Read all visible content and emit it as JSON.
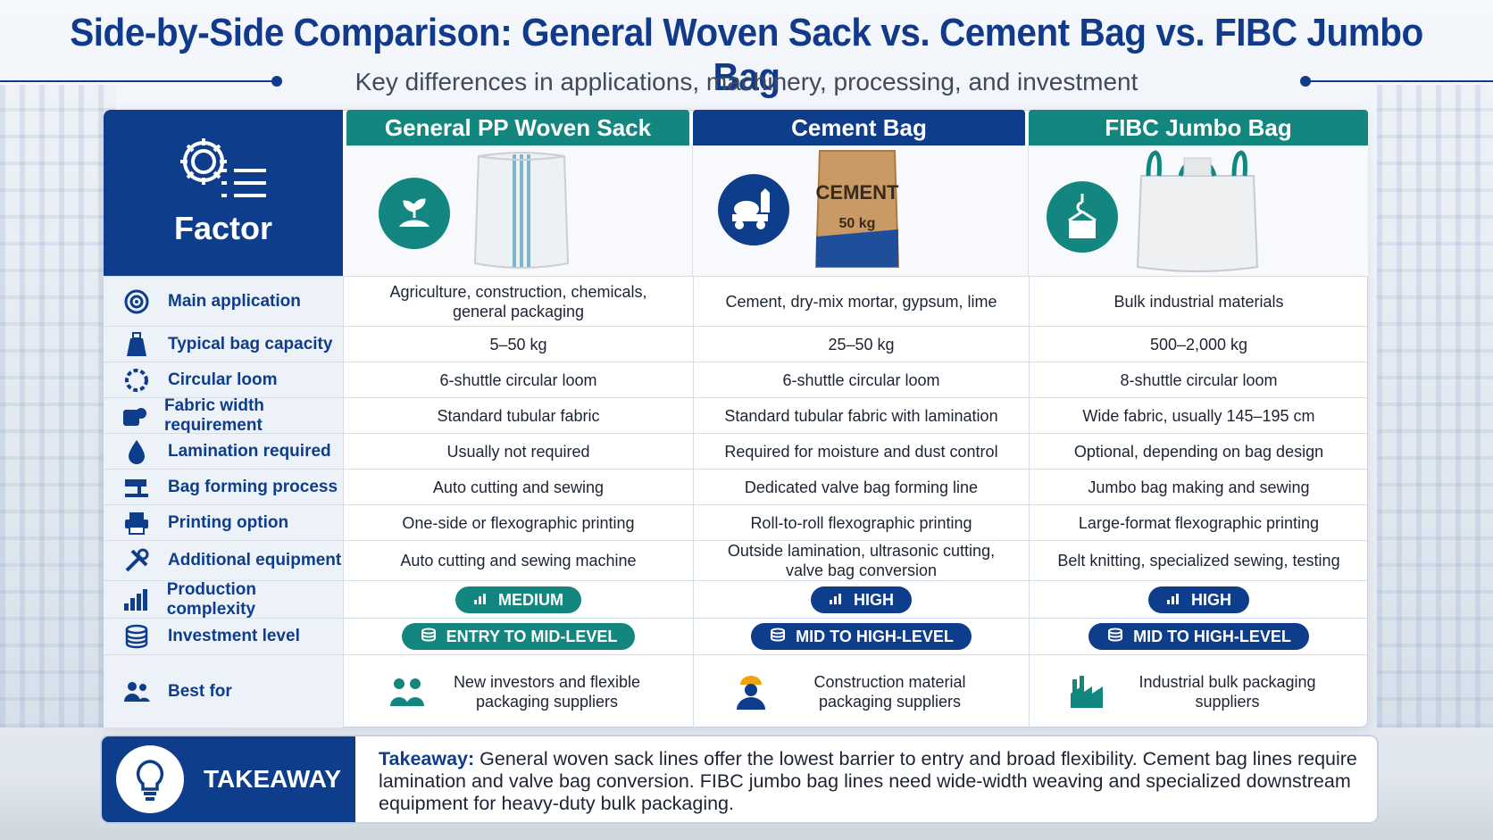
{
  "header": {
    "title": "Side-by-Side Comparison: General Woven Sack vs. Cement Bag vs. FIBC Jumbo Bag",
    "subtitle": "Key differences in applications, machinery, processing, and investment"
  },
  "factor_header": {
    "label": "Factor",
    "icon": "gear-list-icon"
  },
  "columns": [
    {
      "title": "General PP Woven Sack",
      "color": "#13877f",
      "icon": "plant-soil-icon",
      "image": "white-woven-sack-image"
    },
    {
      "title": "Cement Bag",
      "color": "#0e3d8c",
      "icon": "cement-mixer-truck-icon",
      "image": "cement-bag-image",
      "bag_text": "CEMENT",
      "bag_weight": "50 kg"
    },
    {
      "title": "FIBC Jumbo Bag",
      "color": "#13877f",
      "icon": "crane-hook-bag-icon",
      "image": "jumbo-bag-image"
    }
  ],
  "rows": [
    {
      "factor": "Main application",
      "icon": "target-icon",
      "values": [
        "Agriculture, construction, chemicals, general packaging",
        "Cement, dry-mix mortar, gypsum, lime",
        "Bulk industrial materials"
      ]
    },
    {
      "factor": "Typical bag capacity",
      "icon": "weight-bag-icon",
      "values": [
        "5–50 kg",
        "25–50 kg",
        "500–2,000 kg"
      ]
    },
    {
      "factor": "Circular loom",
      "icon": "loom-icon",
      "values": [
        "6-shuttle circular loom",
        "6-shuttle circular loom",
        "8-shuttle circular loom"
      ]
    },
    {
      "factor": "Fabric width requirement",
      "icon": "fabric-roll-icon",
      "values": [
        "Standard tubular fabric",
        "Standard tubular fabric with lamination",
        "Wide fabric, usually 145–195 cm"
      ]
    },
    {
      "factor": "Lamination required",
      "icon": "droplet-icon",
      "values": [
        "Usually not required",
        "Required for moisture and dust control",
        "Optional, depending on bag design"
      ]
    },
    {
      "factor": "Bag forming process",
      "icon": "sewing-machine-icon",
      "values": [
        "Auto cutting and sewing",
        "Dedicated valve bag forming line",
        "Jumbo bag making and sewing"
      ]
    },
    {
      "factor": "Printing option",
      "icon": "printer-icon",
      "values": [
        "One-side or flexographic printing",
        "Roll-to-roll flexographic printing",
        "Large-format flexographic printing"
      ]
    },
    {
      "factor": "Additional equipment",
      "icon": "tools-icon",
      "values": [
        "Auto cutting and sewing machine",
        "Outside lamination, ultrasonic cutting, valve bag conversion",
        "Belt knitting, specialized sewing, testing"
      ]
    },
    {
      "factor": "Production complexity",
      "icon": "bar-chart-icon",
      "pills": [
        "MEDIUM",
        "HIGH",
        "HIGH"
      ]
    },
    {
      "factor": "Investment level",
      "icon": "coins-icon",
      "pills": [
        "ENTRY TO MID-LEVEL",
        "MID TO HIGH-LEVEL",
        "MID TO HIGH-LEVEL"
      ]
    },
    {
      "factor": "Best for",
      "icon": "people-icon",
      "values": [
        "New investors and flexible packaging suppliers",
        "Construction material packaging suppliers",
        "Industrial bulk packaging suppliers"
      ],
      "value_icons": [
        "people-group-icon",
        "construction-worker-icon",
        "factory-icon"
      ]
    }
  ],
  "takeaway": {
    "label": "TAKEAWAY",
    "lead": "Takeaway:",
    "text": "General woven sack lines offer the lowest barrier to entry and broad flexibility. Cement bag lines require lamination and valve bag conversion. FIBC jumbo bag lines need wide-width weaving and specialized downstream equipment for heavy-duty bulk packaging."
  }
}
